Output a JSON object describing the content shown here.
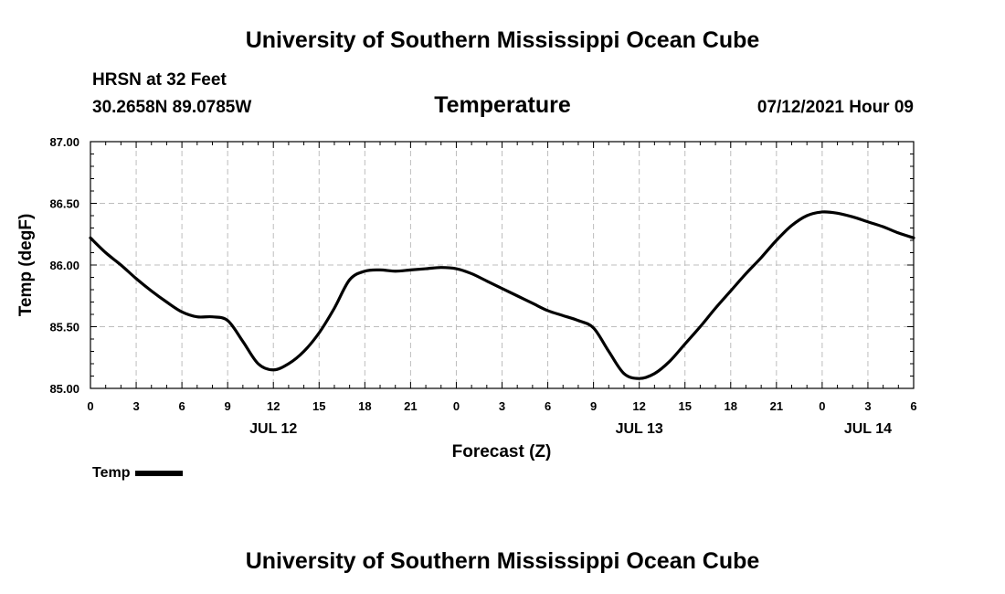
{
  "header": {
    "title": "University of Southern Mississippi Ocean Cube",
    "station": "HRSN at 32 Feet",
    "coordinates": "30.2658N  89.0785W",
    "chart_title": "Temperature",
    "timestamp": "07/12/2021 Hour 09"
  },
  "footer": {
    "title": "University of Southern Mississippi Ocean Cube"
  },
  "legend": {
    "label": "Temp"
  },
  "chart_data": {
    "type": "line",
    "title": "Temperature",
    "xlabel": "Forecast (Z)",
    "ylabel": "Temp (degF)",
    "xlim": [
      0,
      54
    ],
    "ylim": [
      85.0,
      87.0
    ],
    "x_tick_values": [
      0,
      3,
      6,
      9,
      12,
      15,
      18,
      21,
      24,
      27,
      30,
      33,
      36,
      39,
      42,
      45,
      48,
      51,
      54
    ],
    "x_tick_labels": [
      "0",
      "3",
      "6",
      "9",
      "12",
      "15",
      "18",
      "21",
      "0",
      "3",
      "6",
      "9",
      "12",
      "15",
      "18",
      "21",
      "0",
      "3",
      "6"
    ],
    "y_tick_values": [
      85.0,
      85.5,
      86.0,
      86.5,
      87.0
    ],
    "y_tick_labels": [
      "85.00",
      "85.50",
      "86.00",
      "86.50",
      "87.00"
    ],
    "date_labels": [
      {
        "x": 12,
        "label": "JUL 12"
      },
      {
        "x": 36,
        "label": "JUL 13"
      },
      {
        "x": 51,
        "label": "JUL 14"
      }
    ],
    "grid": true,
    "legend_position": "bottom-left",
    "series": [
      {
        "name": "Temp",
        "color": "#000000",
        "x": [
          0,
          1,
          2,
          3,
          4,
          5,
          6,
          7,
          8,
          9,
          10,
          11,
          12,
          13,
          14,
          15,
          16,
          17,
          18,
          19,
          20,
          21,
          22,
          23,
          24,
          25,
          26,
          27,
          28,
          29,
          30,
          31,
          32,
          33,
          34,
          35,
          36,
          37,
          38,
          39,
          40,
          41,
          42,
          43,
          44,
          45,
          46,
          47,
          48,
          49,
          50,
          51,
          52,
          53,
          54
        ],
        "values": [
          86.22,
          86.1,
          86.0,
          85.89,
          85.79,
          85.7,
          85.62,
          85.58,
          85.58,
          85.55,
          85.38,
          85.2,
          85.15,
          85.2,
          85.3,
          85.45,
          85.65,
          85.88,
          85.95,
          85.96,
          85.95,
          85.96,
          85.97,
          85.98,
          85.97,
          85.93,
          85.87,
          85.81,
          85.75,
          85.69,
          85.63,
          85.59,
          85.55,
          85.49,
          85.3,
          85.12,
          85.08,
          85.12,
          85.22,
          85.36,
          85.5,
          85.65,
          85.79,
          85.93,
          86.06,
          86.2,
          86.32,
          86.4,
          86.43,
          86.42,
          86.39,
          86.35,
          86.31,
          86.26,
          86.22
        ]
      }
    ]
  }
}
